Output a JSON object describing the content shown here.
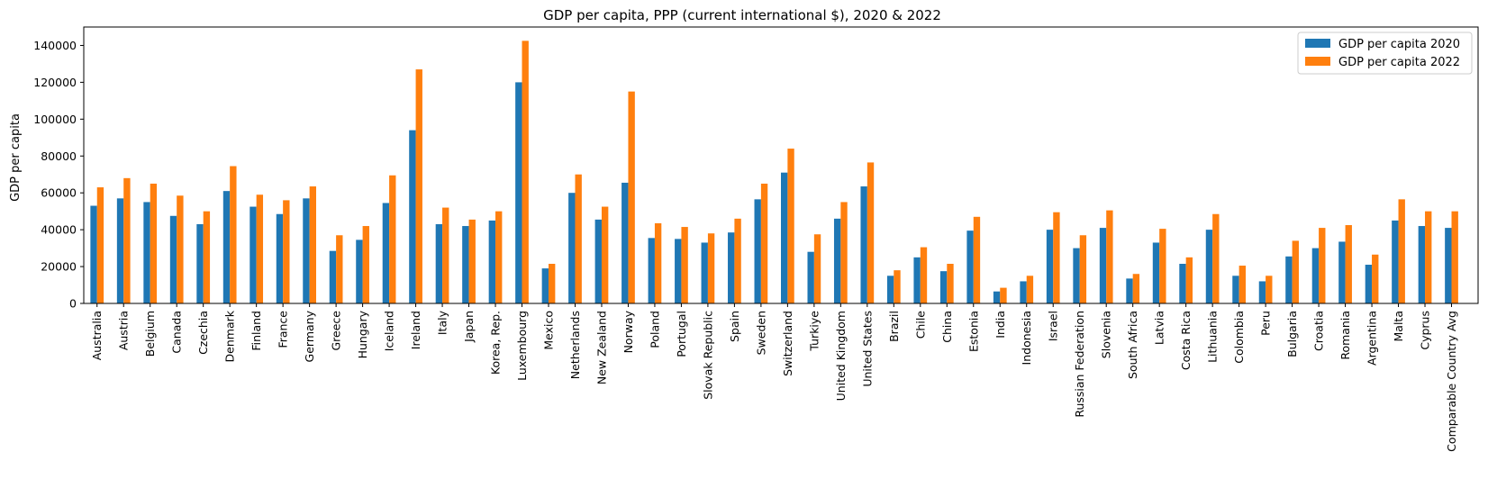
{
  "chart_data": {
    "type": "bar",
    "title": "GDP per capita, PPP (current international $), 2020 & 2022",
    "xlabel": "",
    "ylabel": "GDP per capita",
    "ylim": [
      0,
      150000
    ],
    "yticks": [
      0,
      20000,
      40000,
      60000,
      80000,
      100000,
      120000,
      140000
    ],
    "legend_position": "top-right",
    "grid": false,
    "categories": [
      "Australia",
      "Austria",
      "Belgium",
      "Canada",
      "Czechia",
      "Denmark",
      "Finland",
      "France",
      "Germany",
      "Greece",
      "Hungary",
      "Iceland",
      "Ireland",
      "Italy",
      "Japan",
      "Korea, Rep.",
      "Luxembourg",
      "Mexico",
      "Netherlands",
      "New Zealand",
      "Norway",
      "Poland",
      "Portugal",
      "Slovak Republic",
      "Spain",
      "Sweden",
      "Switzerland",
      "Turkiye",
      "United Kingdom",
      "United States",
      "Brazil",
      "Chile",
      "China",
      "Estonia",
      "India",
      "Indonesia",
      "Israel",
      "Russian Federation",
      "Slovenia",
      "South Africa",
      "Latvia",
      "Costa Rica",
      "Lithuania",
      "Colombia",
      "Peru",
      "Bulgaria",
      "Croatia",
      "Romania",
      "Argentina",
      "Malta",
      "Cyprus",
      "Comparable Country Avg"
    ],
    "series": [
      {
        "name": "GDP per capita 2020",
        "color": "#1f77b4",
        "values": [
          53000,
          57000,
          55000,
          47500,
          43000,
          61000,
          52500,
          48500,
          57000,
          28500,
          34500,
          54500,
          94000,
          43000,
          42000,
          45000,
          120000,
          19000,
          60000,
          45500,
          65500,
          35500,
          35000,
          33000,
          38500,
          56500,
          71000,
          28000,
          46000,
          63500,
          15000,
          25000,
          17500,
          39500,
          6500,
          12000,
          40000,
          30000,
          41000,
          13500,
          33000,
          21500,
          40000,
          15000,
          12000,
          25500,
          30000,
          33500,
          21000,
          45000,
          42000,
          41000
        ]
      },
      {
        "name": "GDP per capita 2022",
        "color": "#ff7f0e",
        "values": [
          63000,
          68000,
          65000,
          58500,
          50000,
          74500,
          59000,
          56000,
          63500,
          37000,
          42000,
          69500,
          127000,
          52000,
          45500,
          50000,
          142500,
          21500,
          70000,
          52500,
          115000,
          43500,
          41500,
          38000,
          46000,
          65000,
          84000,
          37500,
          55000,
          76500,
          18000,
          30500,
          21500,
          47000,
          8500,
          15000,
          49500,
          37000,
          50500,
          16000,
          40500,
          25000,
          48500,
          20500,
          15000,
          34000,
          41000,
          42500,
          26500,
          56500,
          50000,
          50000
        ]
      }
    ]
  }
}
